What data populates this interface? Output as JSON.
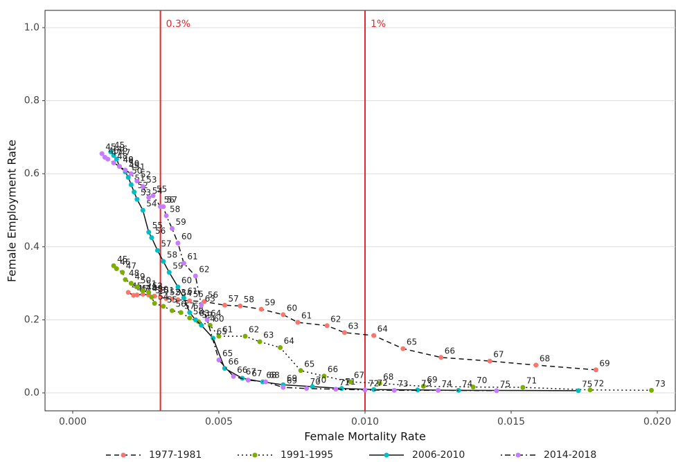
{
  "chart_data": {
    "type": "line",
    "x_label": "Female Mortality Rate",
    "y_label": "Female Employment Rate",
    "xlim": [
      -0.000948,
      0.020616
    ],
    "ylim": [
      -0.0492,
      1.0473
    ],
    "xticks": [
      {
        "value": 0,
        "label": "0.000"
      },
      0.005,
      {
        "value": 0.01,
        "label": "0.010"
      },
      0.015,
      {
        "value": 0.02,
        "label": "0.020"
      }
    ],
    "yticks": [
      {
        "value": 0,
        "label": "0.0"
      },
      0.2,
      0.4,
      0.6,
      0.8,
      {
        "value": 1,
        "label": "1.0"
      }
    ],
    "grid": true,
    "legend": "bottom",
    "vlines": [
      {
        "value": 0.003,
        "label": "0.3%",
        "color": "#e8262a"
      },
      {
        "value": 0.01,
        "label": "1%",
        "color": "#e8262a"
      }
    ],
    "series": [
      {
        "name": "1977-1981",
        "color": "#f8766d",
        "dash": "dashed",
        "labels": [
          45,
          46,
          47,
          48,
          49,
          50,
          51,
          52,
          53,
          54,
          55,
          56,
          57,
          58,
          59,
          60,
          61,
          62,
          63,
          64,
          65,
          66,
          67,
          68,
          69
        ],
        "x": [
          0.0019,
          0.00208,
          0.0022,
          0.0024,
          0.0026,
          0.0028,
          0.003,
          0.0032,
          0.0034,
          0.0036,
          0.004,
          0.0045,
          0.0052,
          0.00573,
          0.00645,
          0.0072,
          0.0077,
          0.0087,
          0.0093,
          0.0103,
          0.0113,
          0.0126,
          0.01427,
          0.01585,
          0.0179
        ],
        "values": [
          0.275,
          0.267,
          0.268,
          0.27,
          0.268,
          0.265,
          0.262,
          0.258,
          0.257,
          0.255,
          0.252,
          0.25,
          0.24,
          0.238,
          0.229,
          0.214,
          0.193,
          0.184,
          0.165,
          0.157,
          0.121,
          0.097,
          0.087,
          0.076,
          0.063
        ]
      },
      {
        "name": "1991-1995",
        "color": "#7cae00",
        "dash": "dotted",
        "labels": [
          45,
          46,
          47,
          48,
          49,
          50,
          51,
          52,
          53,
          54,
          55,
          56,
          57,
          58,
          59,
          60,
          61,
          62,
          63,
          64,
          65,
          66,
          67,
          68,
          69,
          70,
          71,
          72,
          73
        ],
        "x": [
          0.0014,
          0.0015,
          0.0017,
          0.0018,
          0.002,
          0.0022,
          0.0024,
          0.0026,
          0.0027,
          0.0028,
          0.0031,
          0.0034,
          0.0037,
          0.004,
          0.0043,
          0.0047,
          0.005,
          0.0059,
          0.0064,
          0.0071,
          0.0078,
          0.0086,
          0.0095,
          0.0105,
          0.012,
          0.0137,
          0.0154,
          0.0177,
          0.0198
        ],
        "values": [
          0.348,
          0.34,
          0.33,
          0.31,
          0.3,
          0.29,
          0.28,
          0.275,
          0.262,
          0.245,
          0.237,
          0.225,
          0.22,
          0.205,
          0.195,
          0.185,
          0.155,
          0.155,
          0.14,
          0.124,
          0.061,
          0.046,
          0.03,
          0.026,
          0.018,
          0.016,
          0.015,
          0.008,
          0.007
        ]
      },
      {
        "name": "2006-2010",
        "color": "#00bfc4",
        "dash": "solid",
        "labels": [
          45,
          46,
          47,
          48,
          49,
          50,
          51,
          52,
          53,
          54,
          55,
          56,
          57,
          58,
          59,
          60,
          61,
          62,
          63,
          64,
          65,
          66,
          67,
          68,
          69,
          70,
          71,
          72,
          73,
          74,
          75
        ],
        "x": [
          0.0013,
          0.0014,
          0.0015,
          0.0016,
          0.0018,
          0.0019,
          0.002,
          0.0021,
          0.0022,
          0.0024,
          0.0026,
          0.0027,
          0.0029,
          0.0031,
          0.0033,
          0.0036,
          0.0038,
          0.004,
          0.0042,
          0.0044,
          0.0048,
          0.0052,
          0.0058,
          0.0065,
          0.0072,
          0.0082,
          0.0092,
          0.0103,
          0.0118,
          0.0132,
          0.0173
        ],
        "values": [
          0.66,
          0.65,
          0.64,
          0.62,
          0.605,
          0.59,
          0.57,
          0.55,
          0.53,
          0.5,
          0.44,
          0.425,
          0.39,
          0.36,
          0.33,
          0.29,
          0.26,
          0.22,
          0.2,
          0.185,
          0.15,
          0.067,
          0.04,
          0.03,
          0.022,
          0.017,
          0.012,
          0.009,
          0.008,
          0.007,
          0.006
        ]
      },
      {
        "name": "2014-2018",
        "color": "#c77cff",
        "dash": "dotdash",
        "labels": [
          45,
          46,
          47,
          48,
          49,
          50,
          51,
          52,
          53,
          54,
          55,
          56,
          57,
          58,
          59,
          60,
          61,
          62,
          63,
          64,
          65,
          66,
          67,
          68,
          69,
          70,
          71,
          72,
          73,
          74,
          75
        ],
        "x": [
          0.001,
          0.0011,
          0.0012,
          0.0014,
          0.0016,
          0.0018,
          0.002,
          0.0022,
          0.0024,
          0.0026,
          0.00275,
          0.003,
          0.0031,
          0.0032,
          0.0034,
          0.0036,
          0.0038,
          0.0042,
          0.0044,
          0.0046,
          0.005,
          0.0055,
          0.006,
          0.0066,
          0.0072,
          0.008,
          0.009,
          0.01,
          0.011,
          0.0125,
          0.0145
        ],
        "values": [
          0.655,
          0.645,
          0.64,
          0.63,
          0.62,
          0.61,
          0.6,
          0.58,
          0.565,
          0.535,
          0.54,
          0.51,
          0.51,
          0.485,
          0.45,
          0.41,
          0.355,
          0.32,
          0.24,
          0.2,
          0.09,
          0.045,
          0.035,
          0.03,
          0.015,
          0.012,
          0.01,
          0.008,
          0.007,
          0.007,
          0.006
        ]
      }
    ]
  }
}
